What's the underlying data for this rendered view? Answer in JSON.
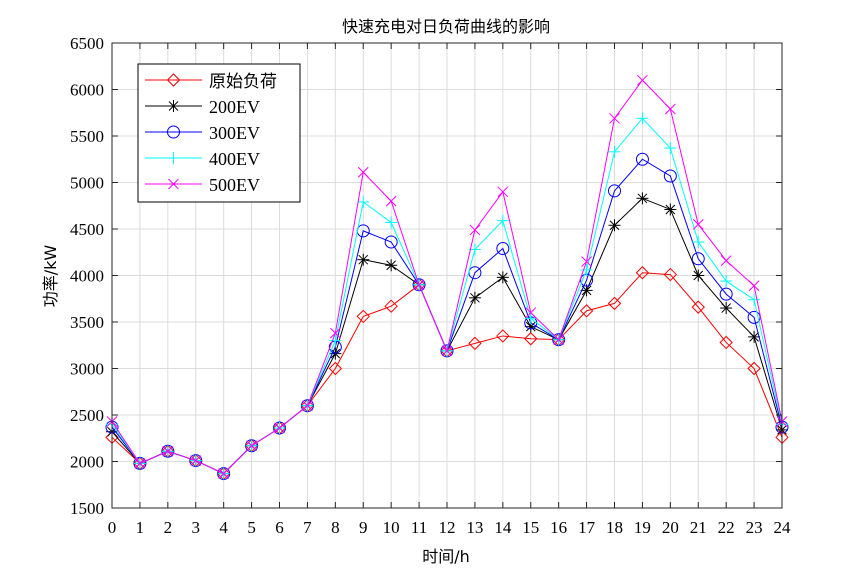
{
  "chart_data": {
    "type": "line",
    "title": "快速充电对日负荷曲线的影响",
    "xlabel": "时间/h",
    "ylabel": "功率/kW",
    "xlim": [
      0,
      24
    ],
    "ylim": [
      1500,
      6500
    ],
    "grid": true,
    "legend_position": "top-left",
    "x": [
      0,
      1,
      2,
      3,
      4,
      5,
      6,
      7,
      8,
      9,
      10,
      11,
      12,
      13,
      14,
      15,
      16,
      17,
      18,
      19,
      20,
      21,
      22,
      23,
      24
    ],
    "x_ticks": [
      0,
      1,
      2,
      3,
      4,
      5,
      6,
      7,
      8,
      9,
      10,
      11,
      12,
      13,
      14,
      15,
      16,
      17,
      18,
      19,
      20,
      21,
      22,
      23,
      24
    ],
    "y_ticks": [
      1500,
      2000,
      2500,
      3000,
      3500,
      4000,
      4500,
      5000,
      5500,
      6000,
      6500
    ],
    "series": [
      {
        "name": "原始负荷",
        "color": "#ff0000",
        "marker": "diamond",
        "values": [
          2260,
          1980,
          2110,
          2010,
          1870,
          2170,
          2360,
          2600,
          3000,
          3560,
          3670,
          3900,
          3190,
          3270,
          3350,
          3320,
          3310,
          3620,
          3700,
          4030,
          4010,
          3660,
          3280,
          3000,
          2260
        ]
      },
      {
        "name": "200EV",
        "color": "#000000",
        "marker": "asterisk",
        "values": [
          2320,
          1980,
          2110,
          2010,
          1870,
          2170,
          2360,
          2600,
          3160,
          4170,
          4110,
          3900,
          3190,
          3760,
          3980,
          3450,
          3310,
          3840,
          4540,
          4830,
          4710,
          4000,
          3650,
          3340,
          2340
        ]
      },
      {
        "name": "300EV",
        "color": "#0000ff",
        "marker": "circle",
        "values": [
          2370,
          1980,
          2110,
          2010,
          1870,
          2170,
          2360,
          2600,
          3230,
          4480,
          4360,
          3900,
          3190,
          4030,
          4290,
          3490,
          3310,
          3950,
          4910,
          5250,
          5070,
          4180,
          3800,
          3550,
          2370
        ]
      },
      {
        "name": "400EV",
        "color": "#00ffff",
        "marker": "plus",
        "values": [
          2400,
          1980,
          2110,
          2010,
          1870,
          2170,
          2360,
          2600,
          3300,
          4790,
          4570,
          3900,
          3190,
          4280,
          4590,
          3540,
          3310,
          4060,
          5330,
          5690,
          5370,
          4360,
          3940,
          3740,
          2400
        ]
      },
      {
        "name": "500EV",
        "color": "#ff00ff",
        "marker": "x",
        "values": [
          2430,
          1980,
          2110,
          2010,
          1870,
          2170,
          2360,
          2600,
          3380,
          5110,
          4800,
          3900,
          3190,
          4490,
          4900,
          3600,
          3310,
          4150,
          5690,
          6100,
          5790,
          4550,
          4160,
          3890,
          2430
        ]
      }
    ]
  }
}
